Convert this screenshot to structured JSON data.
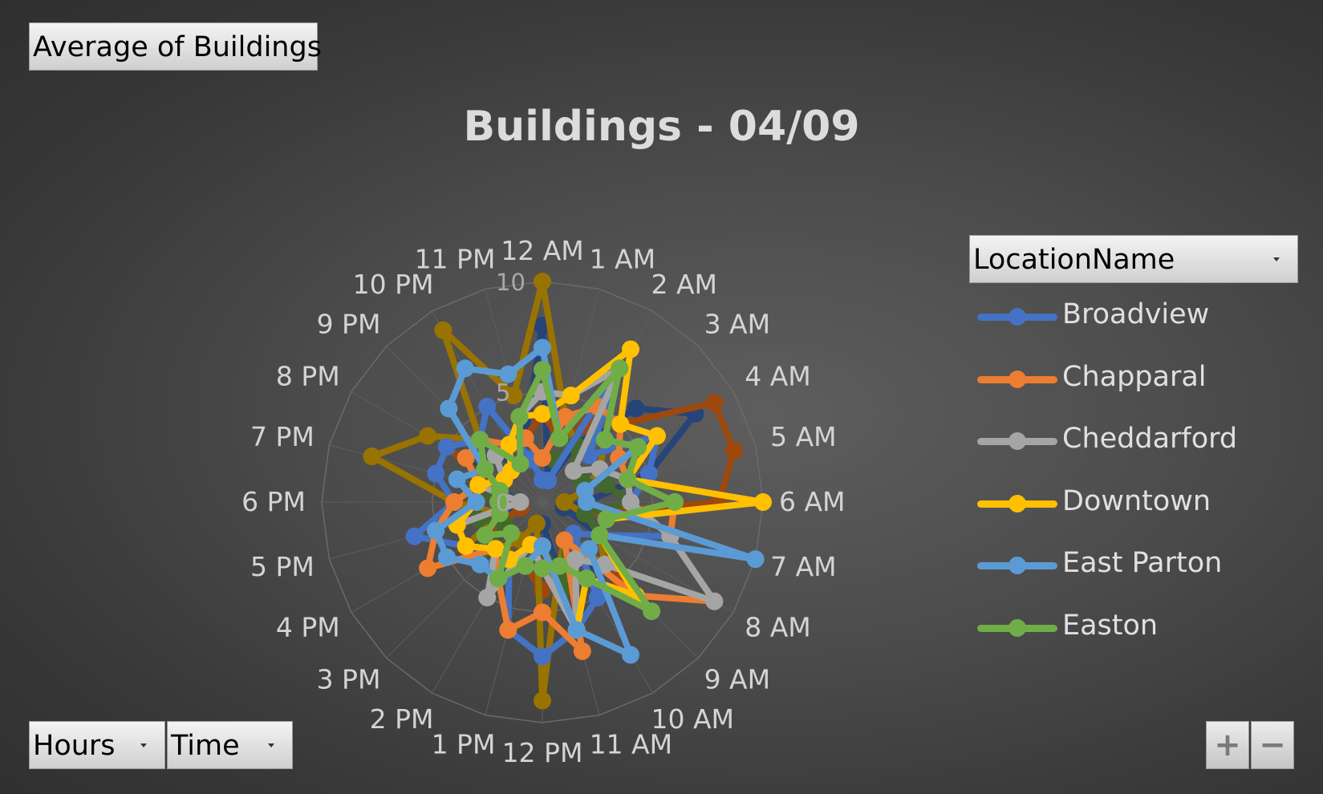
{
  "values_button": {
    "label": "Average  of Buildings"
  },
  "axis_buttons": {
    "hours": "Hours",
    "time": "Time"
  },
  "legend_field": {
    "label": "LocationName"
  },
  "zoom": {
    "in": "+",
    "out": "−"
  },
  "colors": {
    "Broadview": "#4472c4",
    "Chapparal": "#ed7d31",
    "Cheddarford": "#a5a5a5",
    "Downtown": "#ffc000",
    "East Parton": "#5b9bd5",
    "Easton": "#70ad47",
    "other_1": "#264478",
    "other_2": "#9e480e",
    "other_3": "#997300",
    "other_4": "#43682b"
  },
  "chart_data": {
    "type": "radar",
    "title": "Buildings - 04/09",
    "categories": [
      "12 AM",
      "1 AM",
      "2 AM",
      "3 AM",
      "4 AM",
      "5 AM",
      "6 AM",
      "7 AM",
      "8 AM",
      "9 AM",
      "10 AM",
      "11 AM",
      "12 PM",
      "1 PM",
      "2 PM",
      "3 PM",
      "4 PM",
      "5 PM",
      "6 PM",
      "7 PM",
      "8 PM",
      "9 PM",
      "10 PM",
      "11 PM"
    ],
    "r_ticks": [
      "0",
      "5",
      "10"
    ],
    "rlim": [
      0,
      10
    ],
    "grid": true,
    "legend_position": "right",
    "series": [
      {
        "name": "Broadview",
        "values": [
          1,
          1,
          7,
          3,
          6,
          5,
          4,
          6,
          3,
          2,
          5,
          6,
          7,
          6,
          3,
          4,
          4,
          6,
          4,
          5,
          5,
          4,
          5,
          2
        ]
      },
      {
        "name": "Chapparal",
        "values": [
          2,
          4,
          5,
          5,
          4,
          4,
          6,
          6,
          9,
          6,
          2,
          7,
          5,
          6,
          4,
          3,
          6,
          5,
          4,
          3,
          4,
          4,
          3,
          3
        ]
      },
      {
        "name": "Cheddarford",
        "values": [
          5,
          5,
          7,
          2,
          3,
          4,
          4,
          6,
          9,
          4,
          3,
          6,
          3,
          2,
          5,
          3,
          4,
          4,
          1,
          3,
          2,
          3,
          3,
          4
        ]
      },
      {
        "name": "Downtown",
        "values": [
          4,
          5,
          8,
          5,
          6,
          4,
          10,
          3,
          3,
          6,
          4,
          6,
          2,
          2,
          3,
          3,
          4,
          4,
          3,
          3,
          2,
          2,
          3,
          4
        ]
      },
      {
        "name": "East Parton",
        "values": [
          7,
          3,
          7,
          4,
          5,
          2,
          2,
          10,
          3,
          3,
          8,
          6,
          2,
          3,
          4,
          4,
          5,
          5,
          3,
          4,
          3,
          6,
          7,
          6
        ]
      },
      {
        "name": "Easton",
        "values": [
          6,
          3,
          7,
          4,
          5,
          4,
          6,
          3,
          3,
          7,
          4,
          3,
          3,
          3,
          4,
          2,
          3,
          2,
          2,
          2,
          3,
          4,
          2,
          4
        ]
      },
      {
        "name": "",
        "values": [
          8,
          1,
          3,
          6,
          8,
          5,
          2,
          1,
          3,
          5,
          3,
          4,
          1,
          2,
          3,
          2,
          3,
          2,
          1,
          2,
          4,
          3,
          2,
          3
        ]
      },
      {
        "name": "",
        "values": [
          4,
          3,
          4,
          5,
          9,
          9,
          8,
          2,
          3,
          5,
          2,
          3,
          4,
          3,
          3,
          2,
          3,
          1,
          2,
          2,
          5,
          4,
          3,
          3
        ]
      },
      {
        "name": "",
        "values": [
          10,
          4,
          3,
          4,
          3,
          2,
          1,
          2,
          3,
          4,
          2,
          3,
          9,
          1,
          2,
          3,
          4,
          2,
          4,
          8,
          6,
          4,
          9,
          5
        ]
      },
      {
        "name": "",
        "values": [
          2,
          2,
          3,
          2,
          2,
          3,
          4,
          2,
          3,
          3,
          2,
          4,
          2,
          3,
          4,
          4,
          2,
          3,
          3,
          2,
          3,
          4,
          3,
          3
        ]
      }
    ]
  }
}
